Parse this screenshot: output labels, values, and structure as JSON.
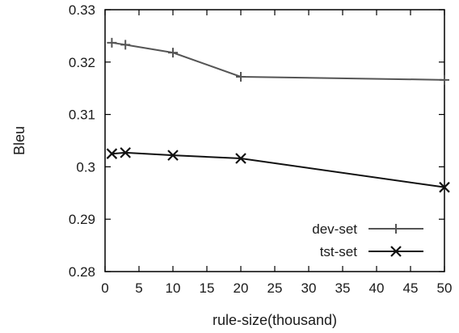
{
  "chart_data": {
    "type": "line",
    "xlabel": "rule-size(thousand)",
    "ylabel": "Bleu",
    "xlim": [
      0,
      50
    ],
    "ylim": [
      0.28,
      0.33
    ],
    "xticks": [
      "0",
      "5",
      "10",
      "15",
      "20",
      "25",
      "30",
      "35",
      "40",
      "45",
      "50"
    ],
    "yticks": [
      "0.28",
      "0.29",
      "0.3",
      "0.31",
      "0.32",
      "0.33"
    ],
    "grid": false,
    "legend_position": "bottom-right",
    "series": [
      {
        "name": "dev-set",
        "marker": "plus",
        "color": "#555555",
        "x": [
          1,
          3,
          10,
          20,
          50
        ],
        "y": [
          0.3237,
          0.3233,
          0.3218,
          0.3172,
          0.3166
        ]
      },
      {
        "name": "tst-set",
        "marker": "cross",
        "color": "#111111",
        "x": [
          1,
          3,
          10,
          20,
          50
        ],
        "y": [
          0.3025,
          0.3027,
          0.3022,
          0.3016,
          0.2961
        ]
      }
    ]
  }
}
